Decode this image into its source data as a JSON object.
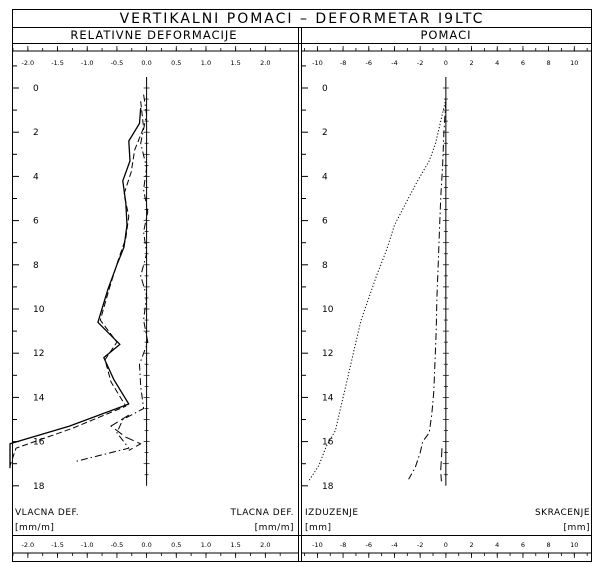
{
  "title": "VERTIKALNI POMACI – DEFORMETAR I9LTC",
  "panels": [
    {
      "subtitle": "RELATIVNE DEFORMACIJE",
      "caption_left": "VLACNA DEF.",
      "caption_right": "TLACNA DEF.",
      "unit_left": "[mm/m]",
      "unit_right": "[mm/m]"
    },
    {
      "subtitle": "POMACI",
      "caption_left": "IZDUZENJE",
      "caption_right": "SKRACENJE",
      "unit_left": "[mm]",
      "unit_right": "[mm]"
    }
  ],
  "chart_data": [
    {
      "type": "line",
      "subtitle": "RELATIVNE DEFORMACIJE",
      "x_ticks": [
        "-2.0",
        "-1.5",
        "-1.0",
        "-0.5",
        "0.0",
        "0.5",
        "1.0",
        "1.5",
        "2.0"
      ],
      "xlim": [
        -2.25,
        2.55
      ],
      "y_ticks": [
        "0",
        "2",
        "4",
        "6",
        "8",
        "10",
        "12",
        "14",
        "16",
        "18"
      ],
      "ylim": [
        -1,
        18
      ],
      "y_direction": "down",
      "series": [
        {
          "style": "solid",
          "points": [
            [
              -0.1,
              0.9
            ],
            [
              -0.12,
              1.6
            ],
            [
              -0.3,
              2.4
            ],
            [
              -0.28,
              3.3
            ],
            [
              -0.4,
              4.2
            ],
            [
              -0.35,
              5.2
            ],
            [
              -0.33,
              6.2
            ],
            [
              -0.38,
              7.2
            ],
            [
              -0.5,
              8.0
            ],
            [
              -0.65,
              9.1
            ],
            [
              -0.82,
              10.6
            ],
            [
              -0.45,
              11.6
            ],
            [
              -0.72,
              12.2
            ],
            [
              -0.55,
              13.2
            ],
            [
              -0.3,
              14.3
            ],
            [
              -1.3,
              15.3
            ],
            [
              -2.3,
              16.1
            ],
            [
              -2.3,
              17.2
            ]
          ]
        },
        {
          "style": "dashed",
          "points": [
            [
              -0.1,
              0.6
            ],
            [
              -0.05,
              1.8
            ],
            [
              -0.2,
              2.8
            ],
            [
              -0.26,
              3.8
            ],
            [
              -0.38,
              4.8
            ],
            [
              -0.3,
              5.8
            ],
            [
              -0.35,
              6.8
            ],
            [
              -0.48,
              7.8
            ],
            [
              -0.62,
              9.0
            ],
            [
              -0.78,
              10.5
            ],
            [
              -0.5,
              11.5
            ],
            [
              -0.7,
              12.3
            ],
            [
              -0.6,
              13.3
            ],
            [
              -0.35,
              14.4
            ],
            [
              -1.25,
              15.4
            ],
            [
              -2.2,
              16.3
            ],
            [
              -2.3,
              17.1
            ]
          ]
        },
        {
          "style": "dash-dot",
          "points": [
            [
              -0.05,
              0.3
            ],
            [
              0.0,
              1.2
            ],
            [
              -0.1,
              2.5
            ],
            [
              0.0,
              3.6
            ],
            [
              -0.05,
              4.6
            ],
            [
              0.02,
              5.6
            ],
            [
              -0.05,
              6.5
            ],
            [
              0.0,
              7.5
            ],
            [
              -0.1,
              8.5
            ],
            [
              0.0,
              9.4
            ],
            [
              -0.05,
              10.5
            ],
            [
              0.02,
              11.5
            ],
            [
              -0.12,
              12.5
            ],
            [
              -0.1,
              13.5
            ],
            [
              -0.05,
              14.5
            ],
            [
              -0.4,
              15.0
            ],
            [
              -0.5,
              15.6
            ],
            [
              -0.3,
              16.3
            ],
            [
              -1.2,
              16.9
            ]
          ]
        },
        {
          "style": "long-dash",
          "points": [
            [
              -0.3,
              14.8
            ],
            [
              -0.6,
              15.3
            ],
            [
              -0.35,
              15.8
            ],
            [
              -0.1,
              16.1
            ],
            [
              -0.3,
              16.4
            ]
          ]
        }
      ]
    },
    {
      "type": "line",
      "subtitle": "POMACI",
      "x_ticks": [
        "-10",
        "-8",
        "-6",
        "-4",
        "-2",
        "0",
        "2",
        "4",
        "6",
        "8",
        "10"
      ],
      "xlim": [
        -11.2,
        11.3
      ],
      "y_ticks": [
        "0",
        "2",
        "4",
        "6",
        "8",
        "10",
        "12",
        "14",
        "16",
        "18"
      ],
      "ylim": [
        -1,
        18
      ],
      "y_direction": "down",
      "series": [
        {
          "style": "dotted",
          "points": [
            [
              0,
              0.5
            ],
            [
              -0.4,
              1.5
            ],
            [
              -0.8,
              2.5
            ],
            [
              -1.3,
              3.3
            ],
            [
              -2.2,
              4.2
            ],
            [
              -3.1,
              5.2
            ],
            [
              -4.0,
              6.2
            ],
            [
              -4.6,
              7.3
            ],
            [
              -5.4,
              8.5
            ],
            [
              -6.0,
              9.5
            ],
            [
              -6.6,
              10.5
            ],
            [
              -7.0,
              11.5
            ],
            [
              -7.4,
              12.5
            ],
            [
              -7.8,
              13.5
            ],
            [
              -8.2,
              14.5
            ],
            [
              -8.6,
              15.5
            ],
            [
              -9.3,
              16.2
            ],
            [
              -9.9,
              17.1
            ],
            [
              -10.7,
              17.8
            ]
          ]
        },
        {
          "style": "dash-dot",
          "points": [
            [
              0,
              0.6
            ],
            [
              -0.15,
              2.0
            ],
            [
              -0.25,
              3.5
            ],
            [
              -0.4,
              5.0
            ],
            [
              -0.5,
              6.5
            ],
            [
              -0.6,
              8.0
            ],
            [
              -0.7,
              9.5
            ],
            [
              -0.75,
              11.0
            ],
            [
              -0.85,
              12.5
            ],
            [
              -0.95,
              13.8
            ],
            [
              -1.1,
              14.8
            ],
            [
              -1.3,
              15.6
            ],
            [
              -1.8,
              16.0
            ],
            [
              -2.0,
              16.5
            ],
            [
              -2.4,
              17.2
            ],
            [
              -2.9,
              17.7
            ]
          ]
        },
        {
          "style": "long-dash",
          "points": [
            [
              -0.3,
              16.3
            ],
            [
              -0.35,
              16.8
            ],
            [
              -0.4,
              17.3
            ],
            [
              -0.35,
              17.8
            ]
          ]
        }
      ]
    }
  ]
}
